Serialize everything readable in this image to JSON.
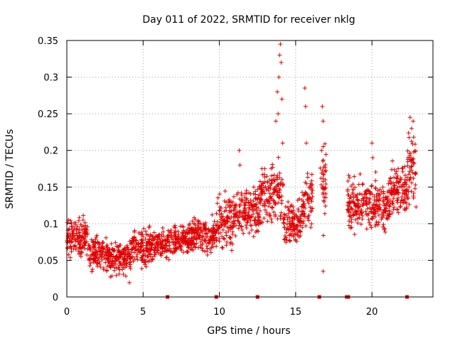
{
  "chart_data": {
    "type": "scatter",
    "title": "Day 011 of 2022, SRMTID for receiver nklg",
    "xlabel": "GPS time / hours",
    "ylabel": "SRMTID / TECUs",
    "xlim": [
      0,
      24
    ],
    "ylim": [
      0,
      0.35
    ],
    "xticks": [
      0,
      5,
      10,
      15,
      20
    ],
    "xtick_labels": [
      "0",
      "5",
      "10",
      "15",
      "20"
    ],
    "yticks": [
      0,
      0.05,
      0.1,
      0.15,
      0.2,
      0.25,
      0.3,
      0.35
    ],
    "ytick_labels": [
      "0",
      "0.05",
      "0.1",
      "0.15",
      "0.2",
      "0.25",
      "0.3",
      "0.35"
    ],
    "grid": true,
    "marker": "plus",
    "color": "#e00000",
    "segments": [
      {
        "t0": 0.0,
        "t1": 1.4,
        "mean": 0.08,
        "spread": 0.022
      },
      {
        "t0": 1.4,
        "t1": 2.8,
        "mean": 0.058,
        "spread": 0.02
      },
      {
        "t0": 2.8,
        "t1": 4.2,
        "mean": 0.052,
        "spread": 0.02
      },
      {
        "t0": 4.2,
        "t1": 5.4,
        "mean": 0.068,
        "spread": 0.02
      },
      {
        "t0": 5.4,
        "t1": 6.6,
        "mean": 0.07,
        "spread": 0.018
      },
      {
        "t0": 6.6,
        "t1": 8.2,
        "mean": 0.078,
        "spread": 0.02
      },
      {
        "t0": 8.2,
        "t1": 9.8,
        "mean": 0.085,
        "spread": 0.02
      },
      {
        "t0": 9.8,
        "t1": 11.0,
        "mean": 0.105,
        "spread": 0.03
      },
      {
        "t0": 11.0,
        "t1": 12.6,
        "mean": 0.115,
        "spread": 0.028
      },
      {
        "t0": 12.6,
        "t1": 14.2,
        "mean": 0.14,
        "spread": 0.035
      },
      {
        "t0": 14.2,
        "t1": 15.4,
        "mean": 0.1,
        "spread": 0.025
      },
      {
        "t0": 15.4,
        "t1": 16.1,
        "mean": 0.13,
        "spread": 0.035
      },
      {
        "t0": 16.6,
        "t1": 17.0,
        "mean": 0.15,
        "spread": 0.05
      },
      {
        "t0": 18.4,
        "t1": 20.0,
        "mean": 0.125,
        "spread": 0.03
      },
      {
        "t0": 20.0,
        "t1": 21.2,
        "mean": 0.125,
        "spread": 0.03
      },
      {
        "t0": 21.2,
        "t1": 22.3,
        "mean": 0.145,
        "spread": 0.028
      },
      {
        "t0": 22.3,
        "t1": 22.9,
        "mean": 0.17,
        "spread": 0.04
      }
    ],
    "peaks": [
      {
        "x": 13.7,
        "y": 0.24
      },
      {
        "x": 13.8,
        "y": 0.28
      },
      {
        "x": 13.9,
        "y": 0.3
      },
      {
        "x": 13.95,
        "y": 0.33
      },
      {
        "x": 14.0,
        "y": 0.345
      },
      {
        "x": 14.05,
        "y": 0.32
      },
      {
        "x": 14.1,
        "y": 0.27
      },
      {
        "x": 13.85,
        "y": 0.25
      },
      {
        "x": 14.15,
        "y": 0.21
      },
      {
        "x": 15.6,
        "y": 0.285
      },
      {
        "x": 15.65,
        "y": 0.26
      },
      {
        "x": 15.7,
        "y": 0.21
      },
      {
        "x": 16.75,
        "y": 0.26
      },
      {
        "x": 16.8,
        "y": 0.24
      },
      {
        "x": 16.7,
        "y": 0.2
      },
      {
        "x": 16.8,
        "y": 0.035
      },
      {
        "x": 11.3,
        "y": 0.2
      },
      {
        "x": 11.35,
        "y": 0.18
      },
      {
        "x": 22.5,
        "y": 0.245
      },
      {
        "x": 22.6,
        "y": 0.23
      },
      {
        "x": 22.7,
        "y": 0.24
      },
      {
        "x": 20.0,
        "y": 0.21
      },
      {
        "x": 20.05,
        "y": 0.19
      }
    ],
    "gap_markers_x": [
      6.6,
      9.8,
      12.5,
      16.55,
      18.35,
      18.45,
      22.3
    ]
  }
}
